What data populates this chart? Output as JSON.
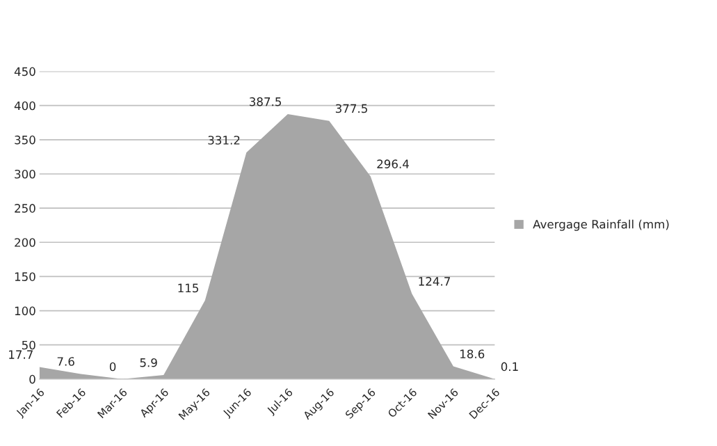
{
  "chart_data": {
    "type": "area",
    "categories": [
      "Jan-16",
      "Feb-16",
      "Mar-16",
      "Apr-16",
      "May-16",
      "Jun-16",
      "Jul-16",
      "Aug-16",
      "Sep-16",
      "Oct-16",
      "Nov-16",
      "Dec-16"
    ],
    "series": [
      {
        "name": "Avergage Rainfall (mm)",
        "color": "#a6a6a6",
        "values": [
          17.7,
          7.6,
          0,
          5.9,
          115,
          331.2,
          387.5,
          377.5,
          296.4,
          124.7,
          18.6,
          0.1
        ]
      }
    ],
    "ylim": [
      0,
      450
    ],
    "yticks": [
      0,
      50,
      100,
      150,
      200,
      250,
      300,
      350,
      400,
      450
    ],
    "grid": "y",
    "legend": "right",
    "data_labels": true
  }
}
